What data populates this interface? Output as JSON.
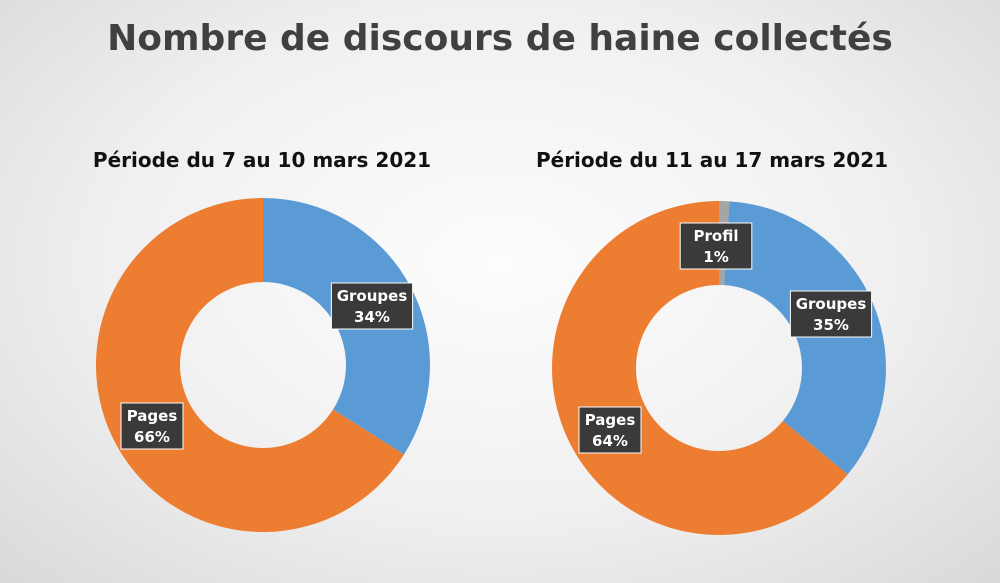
{
  "title": "Nombre de discours de haine collectés",
  "colors": {
    "Groupes": "#5b9bd5",
    "Pages": "#ed7d31",
    "Profil": "#a5a5a5"
  },
  "chart_data": [
    {
      "type": "pie",
      "title": "Période du 7 au 10 mars 2021",
      "categories": [
        "Groupes",
        "Pages"
      ],
      "values": [
        34,
        66
      ],
      "labels": [
        "34%",
        "66%"
      ]
    },
    {
      "type": "pie",
      "title": "Période du 11 au 17 mars 2021",
      "categories": [
        "Profil",
        "Groupes",
        "Pages"
      ],
      "values": [
        1,
        35,
        64
      ],
      "labels": [
        "1%",
        "35%",
        "64%"
      ]
    }
  ]
}
